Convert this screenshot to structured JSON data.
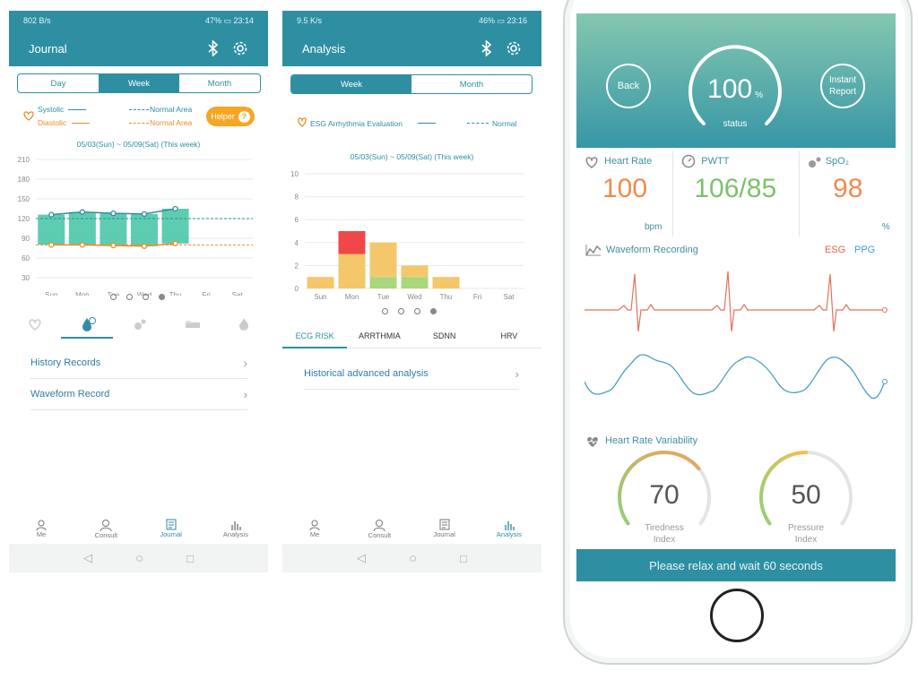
{
  "phone1": {
    "status_left": "802 B/s",
    "status_battery": "47%",
    "status_time": "23:14",
    "title": "Journal",
    "segments": [
      "Day",
      "Week",
      "Month"
    ],
    "legend": {
      "systolic": "Systolic",
      "diastolic": "Diastolic",
      "normal_area_1": "Normal Area",
      "normal_area_2": "Normal Area",
      "helper": "Helper"
    },
    "date_range": "05/03(Sun) ~ 05/09(Sat) (This week)",
    "list": [
      "History Records",
      "Waveform Record"
    ],
    "nav": [
      "Me",
      "Consult",
      "Journal",
      "Analysis"
    ]
  },
  "phone2": {
    "status_left": "9.5 K/s",
    "status_battery": "46%",
    "status_time": "23:16",
    "title": "Analysis",
    "segments": [
      "Week",
      "Month"
    ],
    "legend": {
      "series": "ESG Arrhythmia Evaluation",
      "normal": "Normal"
    },
    "date_range": "05/03(Sun) ~ 05/09(Sat) (This week)",
    "tabs": [
      "ECG RISK",
      "ARRTHMIA",
      "SDNN",
      "HRV"
    ],
    "list": [
      "Historical advanced analysis"
    ],
    "nav": [
      "Me",
      "Consult",
      "Journal",
      "Analysis"
    ]
  },
  "phone3": {
    "back": "Back",
    "instant_report": [
      "Instant",
      "Report"
    ],
    "status_value": "100",
    "status_unit": "%",
    "status_label": "status",
    "vitals": {
      "hr_label": "Heart Rate",
      "hr_value": "100",
      "hr_unit": "bpm",
      "pwtt_label": "PWTT",
      "pwtt_value": "106/85",
      "spo2_label": "SpO₂",
      "spo2_value": "98",
      "spo2_unit": "%"
    },
    "waveform_title": "Waveform Recording",
    "waveform_esg": "ESG",
    "waveform_ppg": "PPG",
    "hrv_title": "Heart Rate Variability",
    "tiredness_value": "70",
    "tiredness_label": [
      "Tiredness",
      "Index"
    ],
    "pressure_value": "50",
    "pressure_label": [
      "Pressure",
      "Index"
    ],
    "tiredness_fraction": 0.7,
    "pressure_fraction": 0.5,
    "footer": "Please relax and wait 60 seconds"
  },
  "chart_data": [
    {
      "type": "line",
      "title": "",
      "categories": [
        "Sun",
        "Mon",
        "Tue",
        "Wed",
        "Thu",
        "Fri",
        "Sat"
      ],
      "y_ticks": [
        30,
        60,
        90,
        120,
        150,
        180,
        210
      ],
      "ylim": [
        30,
        210
      ],
      "series": [
        {
          "name": "Systolic",
          "values": [
            126,
            130,
            128,
            127,
            135,
            null,
            null
          ]
        },
        {
          "name": "Diastolic",
          "values": [
            80,
            80,
            79,
            78,
            82,
            null,
            null
          ]
        }
      ],
      "bars_range": [
        [
          80,
          126
        ],
        [
          80,
          130
        ],
        [
          79,
          128
        ],
        [
          78,
          127
        ],
        [
          82,
          135
        ]
      ],
      "normal_lines": [
        120,
        80
      ]
    },
    {
      "type": "bar",
      "title": "",
      "categories": [
        "Sun",
        "Mon",
        "Tue",
        "Wed",
        "Thu",
        "Fri",
        "Sat"
      ],
      "y_ticks": [
        0,
        2,
        4,
        6,
        8,
        10
      ],
      "ylim": [
        0,
        10
      ],
      "stacks": [
        [
          {
            "v": 1,
            "c": "yellow"
          }
        ],
        [
          {
            "v": 3,
            "c": "yellow"
          },
          {
            "v": 2,
            "c": "red"
          }
        ],
        [
          {
            "v": 1,
            "c": "green"
          },
          {
            "v": 3,
            "c": "yellow"
          }
        ],
        [
          {
            "v": 1,
            "c": "green"
          },
          {
            "v": 1,
            "c": "yellow"
          }
        ],
        [
          {
            "v": 1,
            "c": "yellow"
          }
        ],
        [],
        []
      ],
      "colors": {
        "yellow": "#f5c76b",
        "red": "#f04848",
        "green": "#a9d77c"
      }
    }
  ]
}
